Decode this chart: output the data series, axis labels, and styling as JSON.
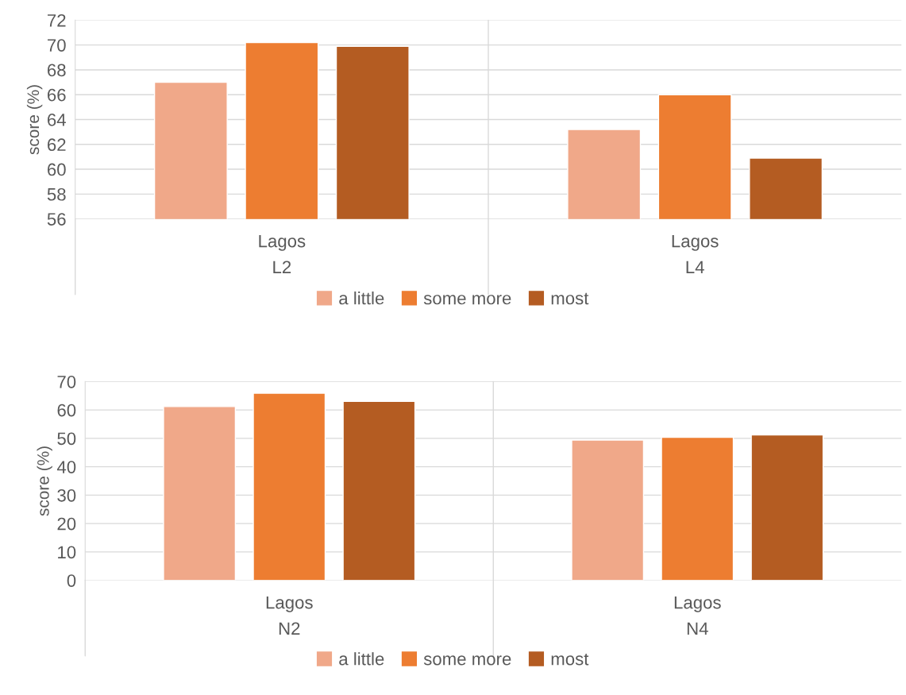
{
  "chart_data": [
    {
      "type": "bar",
      "ylabel": "score (%)",
      "categories": [
        "Lagos",
        "Lagos"
      ],
      "annotations": [
        "L2",
        "L4"
      ],
      "series": [
        {
          "name": "a little",
          "color": "#f0a889",
          "values": [
            67.0,
            63.2
          ]
        },
        {
          "name": "some more",
          "color": "#ed7d31",
          "values": [
            70.2,
            66.0
          ]
        },
        {
          "name": "most",
          "color": "#b45c22",
          "values": [
            69.9,
            60.9
          ]
        }
      ],
      "ylim": [
        56,
        72
      ],
      "yticks": [
        56,
        58,
        60,
        62,
        64,
        66,
        68,
        70,
        72
      ],
      "grid": "y",
      "legend": "bottom"
    },
    {
      "type": "bar",
      "ylabel": "score (%)",
      "categories": [
        "Lagos",
        "Lagos"
      ],
      "annotations": [
        "N2",
        "N4"
      ],
      "series": [
        {
          "name": "a little",
          "color": "#f0a889",
          "values": [
            61.2,
            49.4
          ]
        },
        {
          "name": "some more",
          "color": "#ed7d31",
          "values": [
            65.9,
            50.4
          ]
        },
        {
          "name": "most",
          "color": "#b45c22",
          "values": [
            63.0,
            51.2
          ]
        }
      ],
      "ylim": [
        0,
        70
      ],
      "yticks": [
        0,
        10,
        20,
        30,
        40,
        50,
        60,
        70
      ],
      "grid": "y",
      "legend": "bottom"
    }
  ]
}
